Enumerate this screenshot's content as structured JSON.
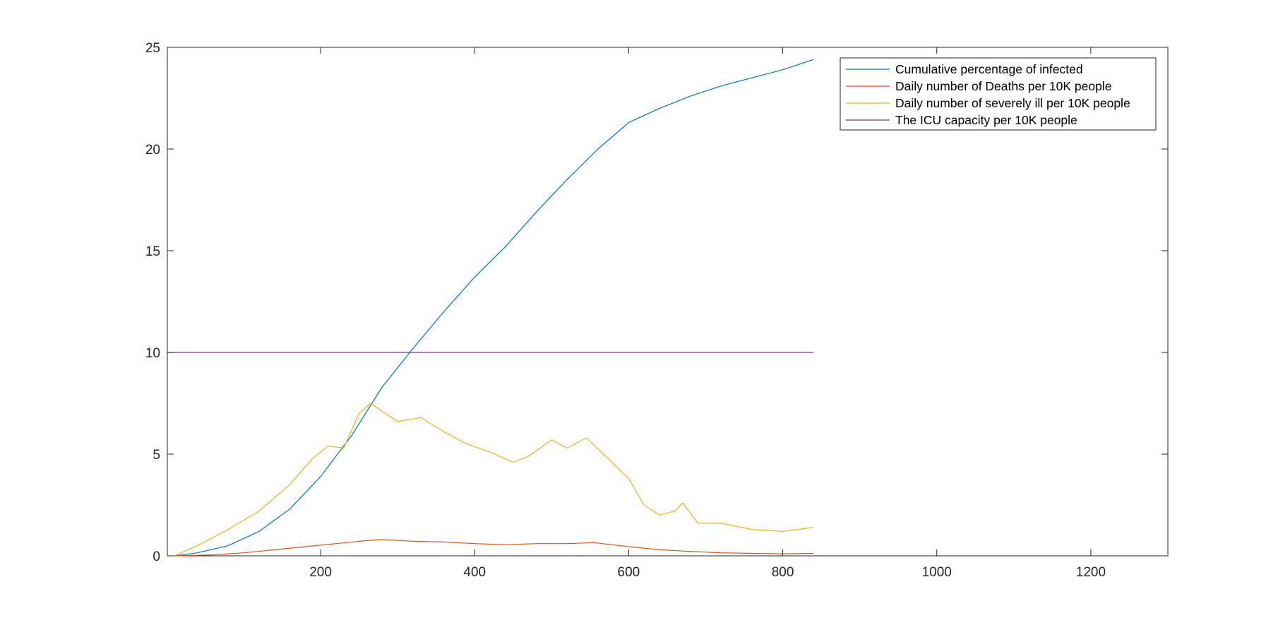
{
  "chart_data": {
    "type": "line",
    "title": "",
    "xlabel": "",
    "ylabel": "",
    "xlim": [
      1,
      1300
    ],
    "ylim": [
      0,
      25
    ],
    "xticks": [
      200,
      400,
      600,
      800,
      1000,
      1200
    ],
    "yticks": [
      0,
      5,
      10,
      15,
      20,
      25
    ],
    "grid": false,
    "legend_position": "top-right",
    "series": [
      {
        "name": "Cumulative percentage of infected",
        "color": "#0072BD",
        "x": [
          10,
          40,
          80,
          120,
          160,
          200,
          240,
          280,
          320,
          360,
          400,
          440,
          480,
          520,
          560,
          600,
          640,
          680,
          720,
          760,
          800,
          840
        ],
        "y": [
          0.0,
          0.15,
          0.5,
          1.2,
          2.3,
          3.9,
          5.9,
          8.3,
          10.2,
          12.0,
          13.7,
          15.2,
          16.9,
          18.5,
          20.0,
          21.3,
          22.0,
          22.6,
          23.1,
          23.5,
          23.9,
          24.4
        ]
      },
      {
        "name": "Daily number of Deaths per 10K people",
        "color": "#D95319",
        "x": [
          10,
          60,
          100,
          140,
          180,
          220,
          260,
          280,
          320,
          360,
          400,
          440,
          480,
          520,
          555,
          600,
          640,
          680,
          720,
          760,
          800,
          840
        ],
        "y": [
          0.0,
          0.05,
          0.15,
          0.3,
          0.45,
          0.6,
          0.75,
          0.8,
          0.72,
          0.68,
          0.6,
          0.55,
          0.6,
          0.6,
          0.65,
          0.45,
          0.3,
          0.22,
          0.15,
          0.12,
          0.1,
          0.12
        ]
      },
      {
        "name": "Daily number of severely ill per 10K people",
        "color": "#EDB120",
        "x": [
          10,
          40,
          80,
          120,
          160,
          190,
          210,
          230,
          250,
          265,
          280,
          300,
          330,
          360,
          390,
          420,
          450,
          470,
          500,
          520,
          545,
          570,
          600,
          620,
          640,
          660,
          670,
          690,
          720,
          760,
          800,
          840
        ],
        "y": [
          0.0,
          0.5,
          1.3,
          2.2,
          3.5,
          4.8,
          5.4,
          5.3,
          7.0,
          7.5,
          7.1,
          6.6,
          6.8,
          6.1,
          5.5,
          5.1,
          4.6,
          4.9,
          5.7,
          5.3,
          5.8,
          4.9,
          3.8,
          2.5,
          2.0,
          2.2,
          2.6,
          1.6,
          1.6,
          1.3,
          1.2,
          1.4
        ]
      },
      {
        "name": "The ICU capacity per 10K people",
        "color": "#7E2F8E",
        "x": [
          1,
          840
        ],
        "y": [
          10,
          10
        ]
      }
    ]
  }
}
